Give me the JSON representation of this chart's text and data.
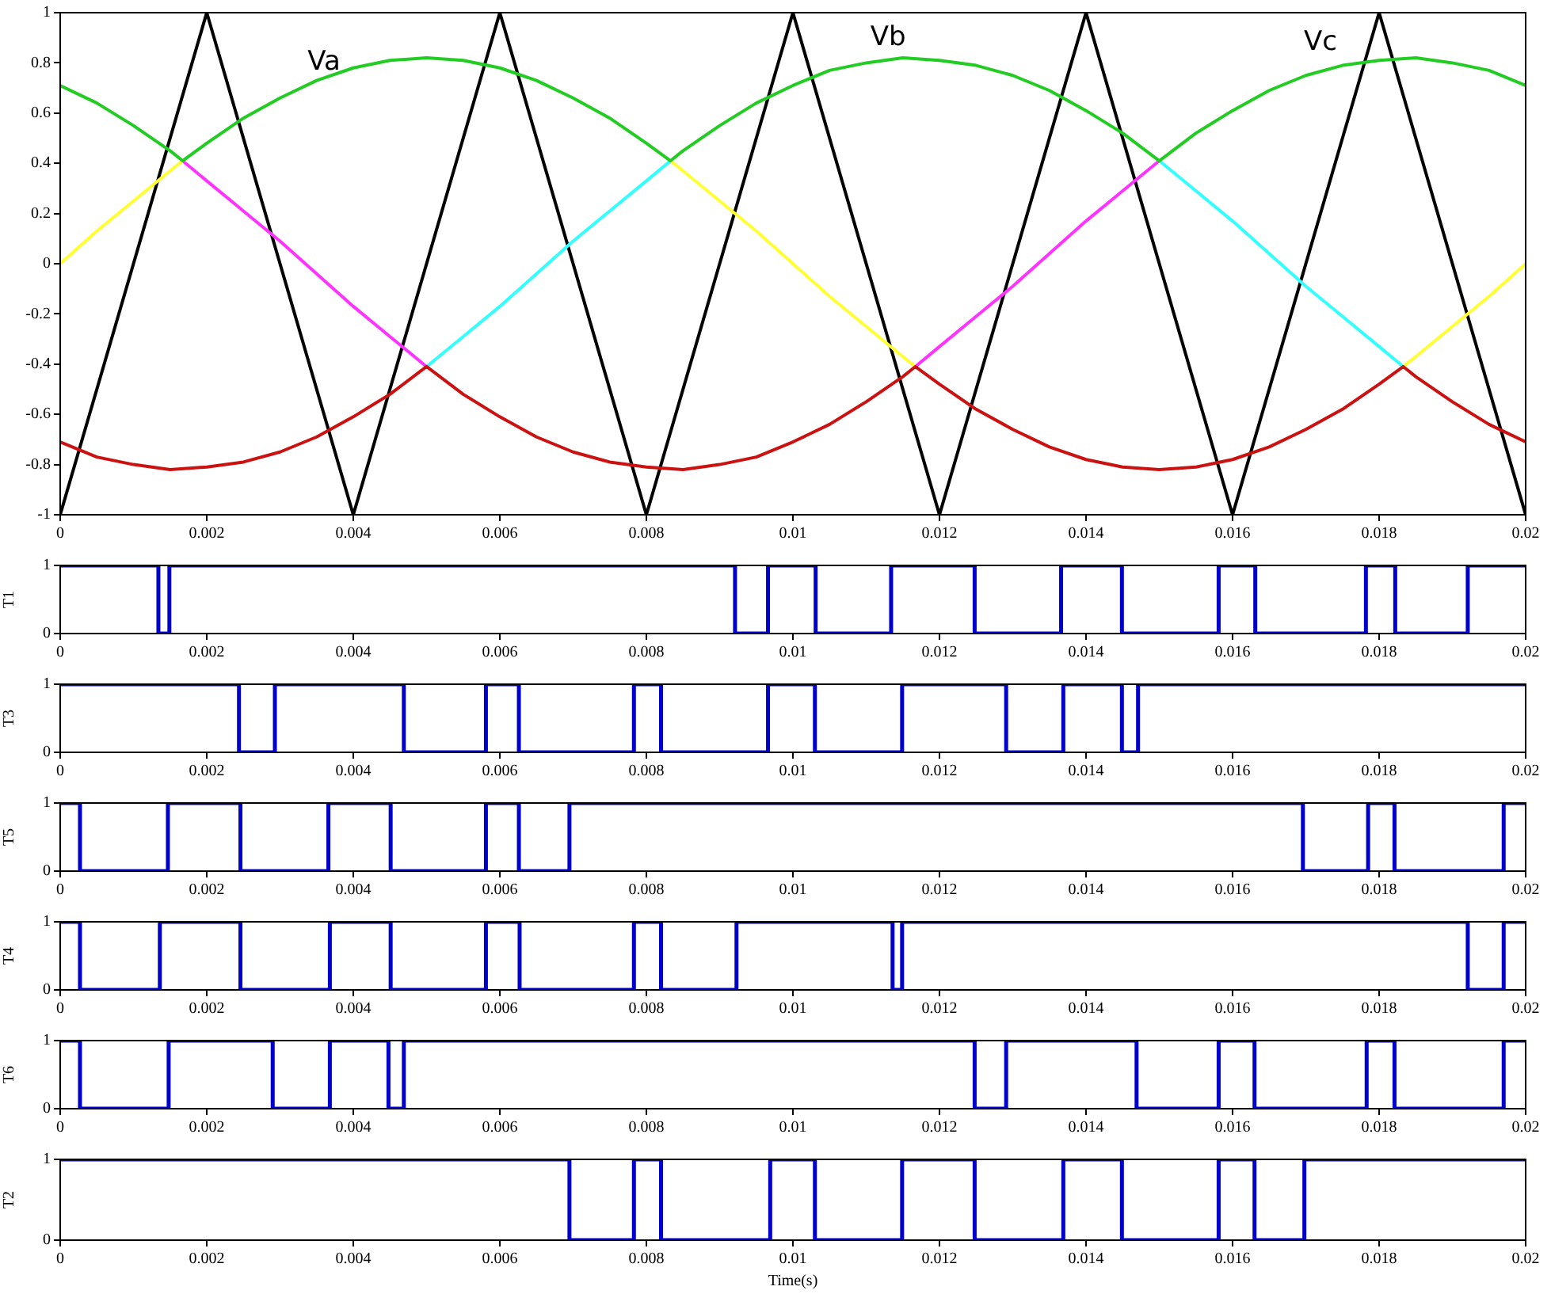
{
  "chart_data": [
    {
      "type": "line",
      "marker": "none",
      "xlim": [
        0,
        0.02
      ],
      "xticks": [
        0,
        0.002,
        0.004,
        0.006,
        0.008,
        0.01,
        0.012,
        0.014,
        0.016,
        0.018,
        0.02
      ],
      "ylim": [
        -1,
        1
      ],
      "yticks": [
        -1,
        -0.8,
        -0.6,
        -0.4,
        -0.2,
        0,
        0.2,
        0.4,
        0.6,
        0.8,
        1
      ],
      "annotations": [
        "Va",
        "Vb",
        "Vc"
      ],
      "series": [
        {
          "color": "#22cc22",
          "x": [
            0,
            0.0005,
            0.001,
            0.0015,
            0.00167,
            0.002,
            0.0025,
            0.003,
            0.0035,
            0.004,
            0.0045,
            0.005,
            0.0055,
            0.006,
            0.0065,
            0.007,
            0.0075,
            0.008,
            0.00833,
            0.0085,
            0.009,
            0.0095,
            0.01,
            0.0105,
            0.011,
            0.0115,
            0.012,
            0.0125,
            0.013,
            0.0135,
            0.014,
            0.0145,
            0.015,
            0.0155,
            0.016,
            0.0165,
            0.017,
            0.0175,
            0.018,
            0.0185,
            0.019,
            0.0195,
            0.02
          ],
          "values": [
            0.71,
            0.64,
            0.55,
            0.45,
            0.41,
            0.48,
            0.58,
            0.66,
            0.73,
            0.78,
            0.81,
            0.82,
            0.81,
            0.78,
            0.73,
            0.66,
            0.58,
            0.48,
            0.41,
            0.45,
            0.55,
            0.64,
            0.71,
            0.77,
            0.8,
            0.82,
            0.81,
            0.79,
            0.75,
            0.69,
            0.61,
            0.52,
            0.41,
            0.52,
            0.61,
            0.69,
            0.75,
            0.79,
            0.81,
            0.82,
            0.8,
            0.77,
            0.71
          ]
        },
        {
          "color": "#cc1111",
          "x": [
            0,
            0.0005,
            0.001,
            0.0015,
            0.002,
            0.0025,
            0.003,
            0.0035,
            0.004,
            0.0045,
            0.005,
            0.0055,
            0.006,
            0.0065,
            0.007,
            0.0075,
            0.008,
            0.0085,
            0.009,
            0.0095,
            0.01,
            0.0105,
            0.011,
            0.0115,
            0.01167,
            0.012,
            0.0125,
            0.013,
            0.0135,
            0.014,
            0.0145,
            0.015,
            0.0155,
            0.016,
            0.0165,
            0.017,
            0.0175,
            0.018,
            0.01833,
            0.0185,
            0.019,
            0.0195,
            0.02
          ],
          "values": [
            -0.71,
            -0.77,
            -0.8,
            -0.82,
            -0.81,
            -0.79,
            -0.75,
            -0.69,
            -0.61,
            -0.52,
            -0.41,
            -0.52,
            -0.61,
            -0.69,
            -0.75,
            -0.79,
            -0.81,
            -0.82,
            -0.8,
            -0.77,
            -0.71,
            -0.64,
            -0.55,
            -0.45,
            -0.41,
            -0.48,
            -0.58,
            -0.66,
            -0.73,
            -0.78,
            -0.81,
            -0.82,
            -0.81,
            -0.78,
            -0.73,
            -0.66,
            -0.58,
            -0.48,
            -0.41,
            -0.45,
            -0.55,
            -0.64,
            -0.71
          ]
        },
        {
          "color": "#ffff33",
          "x": [
            0,
            0.0005,
            0.001,
            0.0015,
            0.00167,
            0.005,
            0.00833,
            0.0085,
            0.009,
            0.0095,
            0.01,
            0.0105,
            0.011,
            0.0115,
            0.01167,
            0.015,
            0.01833,
            0.0185,
            0.019,
            0.0195,
            0.02
          ],
          "values": [
            0,
            0.13,
            0.25,
            0.37,
            0.41,
            null,
            0.41,
            0.37,
            0.25,
            0.13,
            0,
            -0.13,
            -0.25,
            -0.37,
            -0.41,
            null,
            -0.41,
            -0.37,
            -0.25,
            -0.13,
            0
          ]
        },
        {
          "color": "#ff33ff",
          "x": [
            0.00167,
            0.002,
            0.0025,
            0.003,
            0.0035,
            0.004,
            0.0045,
            0.005,
            0.008,
            0.01167,
            0.012,
            0.0125,
            0.013,
            0.0135,
            0.014,
            0.0145,
            0.015
          ],
          "values": [
            0.41,
            0.33,
            0.21,
            0.09,
            -0.04,
            -0.17,
            -0.29,
            -0.41,
            null,
            -0.41,
            -0.33,
            -0.21,
            -0.09,
            0.04,
            0.17,
            0.29,
            0.41
          ]
        },
        {
          "color": "#33ffff",
          "x": [
            0.005,
            0.0055,
            0.006,
            0.0065,
            0.007,
            0.0075,
            0.008,
            0.00833,
            0.012,
            0.015,
            0.0155,
            0.016,
            0.0165,
            0.017,
            0.0175,
            0.018,
            0.01833
          ],
          "values": [
            -0.41,
            -0.29,
            -0.17,
            -0.04,
            0.09,
            0.21,
            0.33,
            0.41,
            null,
            0.41,
            0.29,
            0.17,
            0.04,
            -0.09,
            -0.21,
            -0.33,
            -0.41
          ]
        },
        {
          "color": "#000000",
          "x": [
            0,
            0.002,
            0.004,
            0.006,
            0.008,
            0.01,
            0.012,
            0.014,
            0.016,
            0.018,
            0.02
          ],
          "values": [
            -1,
            1,
            -1,
            1,
            -1,
            1,
            -1,
            1,
            -1,
            1,
            -1
          ]
        }
      ]
    },
    {
      "type": "step",
      "marker": "none",
      "ylabel": "T1",
      "xlim": [
        0,
        0.02
      ],
      "xticks": [
        0,
        0.002,
        0.004,
        0.006,
        0.008,
        0.01,
        0.012,
        0.014,
        0.016,
        0.018,
        0.02
      ],
      "ylim": [
        0,
        1
      ],
      "yticks": [
        0,
        1
      ],
      "series": [
        {
          "color": "#0000cc",
          "x": [
            0,
            0.00134,
            0.00149,
            0.00921,
            0.00966,
            0.01031,
            0.01134,
            0.01248,
            0.01366,
            0.01449,
            0.01581,
            0.01631,
            0.01782,
            0.01822,
            0.01921,
            0.02
          ],
          "values": [
            1,
            0,
            1,
            0,
            1,
            0,
            1,
            0,
            1,
            0,
            1,
            0,
            1,
            0,
            1,
            1
          ]
        }
      ]
    },
    {
      "type": "step",
      "marker": "none",
      "ylabel": "T3",
      "xlim": [
        0,
        0.02
      ],
      "xticks": [
        0,
        0.002,
        0.004,
        0.006,
        0.008,
        0.01,
        0.012,
        0.014,
        0.016,
        0.018,
        0.02
      ],
      "ylim": [
        0,
        1
      ],
      "yticks": [
        0,
        1
      ],
      "series": [
        {
          "color": "#0000cc",
          "x": [
            0,
            0.00244,
            0.00293,
            0.00469,
            0.00581,
            0.00626,
            0.00783,
            0.0082,
            0.00966,
            0.0103,
            0.01149,
            0.01291,
            0.01369,
            0.01449,
            0.01471,
            0.02
          ],
          "values": [
            1,
            0,
            1,
            0,
            1,
            0,
            1,
            0,
            1,
            0,
            1,
            0,
            1,
            0,
            1,
            1
          ]
        }
      ]
    },
    {
      "type": "step",
      "marker": "none",
      "ylabel": "T5",
      "xlim": [
        0,
        0.02
      ],
      "xticks": [
        0,
        0.002,
        0.004,
        0.006,
        0.008,
        0.01,
        0.012,
        0.014,
        0.016,
        0.018,
        0.02
      ],
      "ylim": [
        0,
        1
      ],
      "yticks": [
        0,
        1
      ],
      "series": [
        {
          "color": "#0000cc",
          "x": [
            0,
            0.00027,
            0.00147,
            0.00246,
            0.00366,
            0.00451,
            0.00581,
            0.00626,
            0.00695,
            0.01696,
            0.01785,
            0.01821,
            0.0197,
            0.02
          ],
          "values": [
            1,
            0,
            1,
            0,
            1,
            0,
            1,
            0,
            1,
            0,
            1,
            0,
            1,
            1
          ]
        }
      ]
    },
    {
      "type": "step",
      "marker": "none",
      "ylabel": "T4",
      "xlim": [
        0,
        0.02
      ],
      "xticks": [
        0,
        0.002,
        0.004,
        0.006,
        0.008,
        0.01,
        0.012,
        0.014,
        0.016,
        0.018,
        0.02
      ],
      "ylim": [
        0,
        1
      ],
      "yticks": [
        0,
        1
      ],
      "series": [
        {
          "color": "#0000cc",
          "x": [
            0,
            0.00027,
            0.00136,
            0.00246,
            0.00368,
            0.00451,
            0.00581,
            0.00627,
            0.00783,
            0.0082,
            0.00923,
            0.01136,
            0.01149,
            0.01921,
            0.0197,
            0.02
          ],
          "values": [
            1,
            0,
            1,
            0,
            1,
            0,
            1,
            0,
            1,
            0,
            1,
            0,
            1,
            0,
            1,
            1
          ]
        }
      ]
    },
    {
      "type": "step",
      "marker": "none",
      "ylabel": "T6",
      "xlim": [
        0,
        0.02
      ],
      "xticks": [
        0,
        0.002,
        0.004,
        0.006,
        0.008,
        0.01,
        0.012,
        0.014,
        0.016,
        0.018,
        0.02
      ],
      "ylim": [
        0,
        1
      ],
      "yticks": [
        0,
        1
      ],
      "series": [
        {
          "color": "#0000cc",
          "x": [
            0,
            0.00027,
            0.00148,
            0.0029,
            0.00368,
            0.00448,
            0.00469,
            0.01248,
            0.01291,
            0.01469,
            0.01581,
            0.0163,
            0.01783,
            0.01821,
            0.0197,
            0.02
          ],
          "values": [
            1,
            0,
            1,
            0,
            1,
            0,
            1,
            0,
            1,
            0,
            1,
            0,
            1,
            0,
            1,
            1
          ]
        }
      ]
    },
    {
      "type": "step",
      "marker": "none",
      "ylabel": "T2",
      "xlabel": "Time(s)",
      "xlim": [
        0,
        0.02
      ],
      "xticks": [
        0,
        0.002,
        0.004,
        0.006,
        0.008,
        0.01,
        0.012,
        0.014,
        0.016,
        0.018,
        0.02
      ],
      "ylim": [
        0,
        1
      ],
      "yticks": [
        0,
        1
      ],
      "series": [
        {
          "color": "#0000cc",
          "x": [
            0,
            0.00695,
            0.00783,
            0.0082,
            0.00969,
            0.0103,
            0.01149,
            0.01248,
            0.01369,
            0.01449,
            0.01581,
            0.0163,
            0.01698,
            0.02
          ],
          "values": [
            1,
            0,
            1,
            0,
            1,
            0,
            1,
            0,
            1,
            0,
            1,
            0,
            1,
            1
          ]
        }
      ]
    }
  ]
}
